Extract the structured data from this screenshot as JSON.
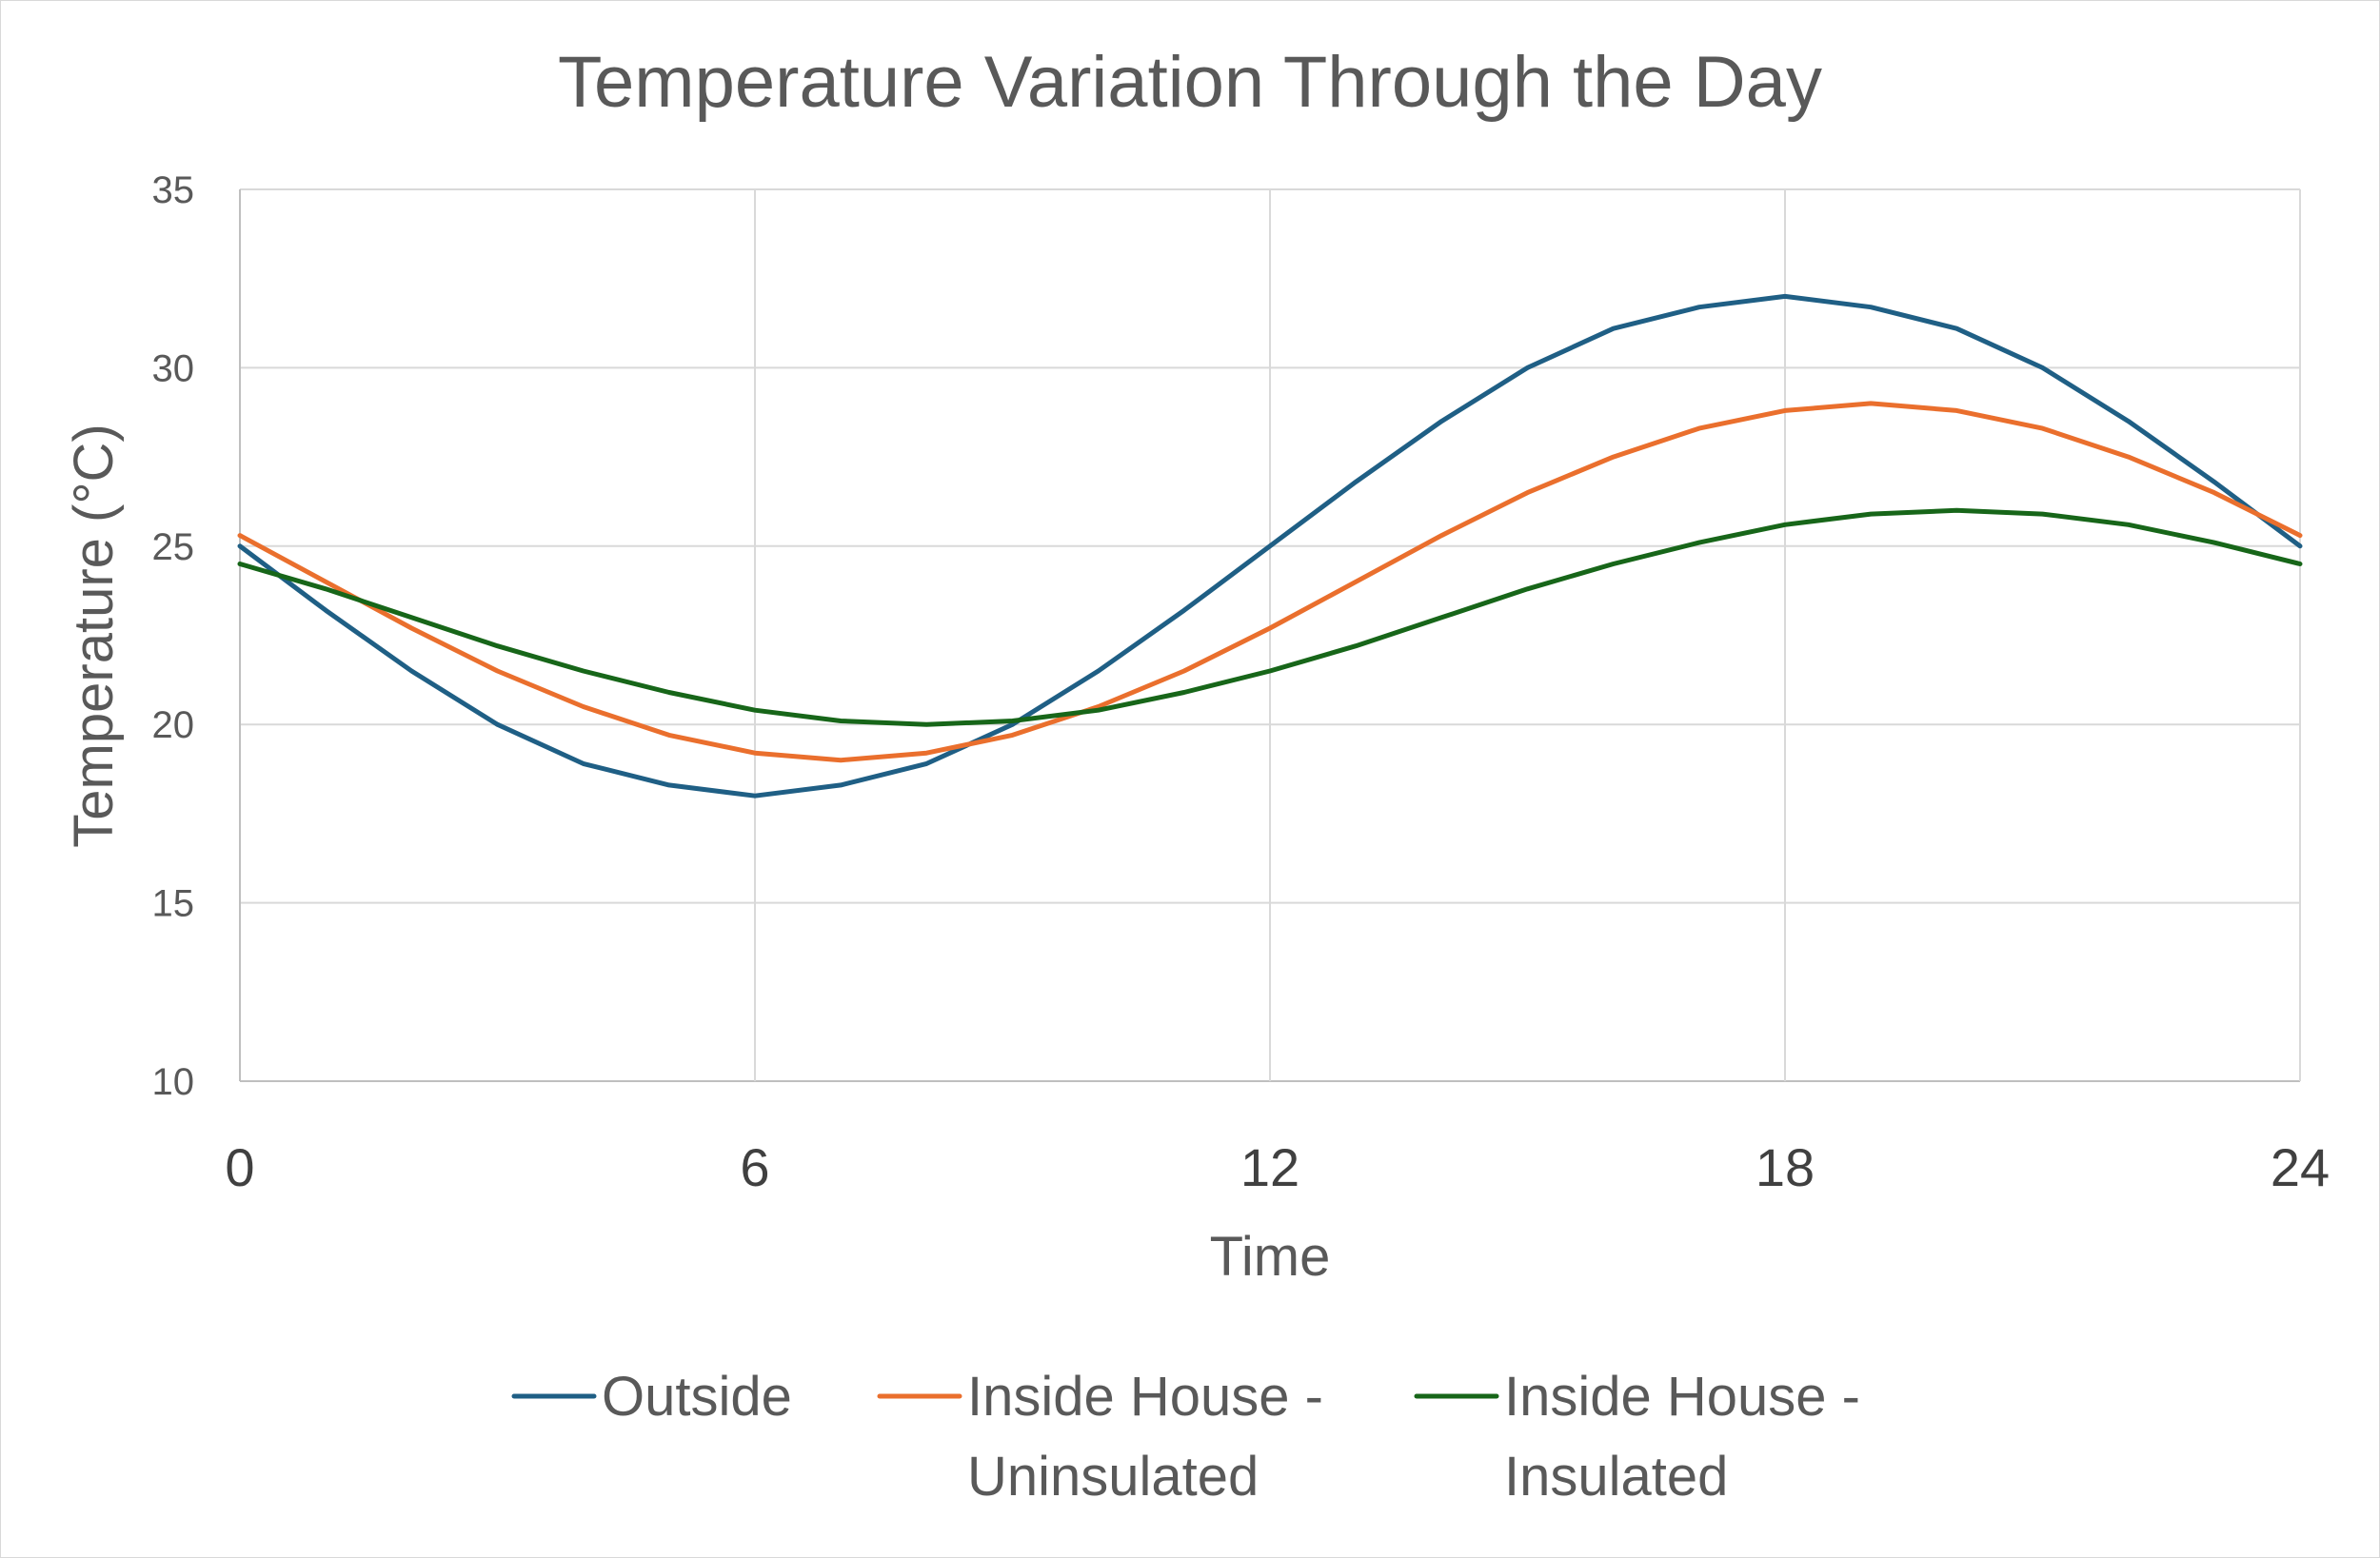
{
  "chart_data": {
    "type": "line",
    "title": "Temperature Variation Through the Day",
    "xlabel": "Time",
    "ylabel": "Temperature  (°C)",
    "xlim": [
      0,
      24
    ],
    "ylim": [
      10,
      35
    ],
    "xticks": [
      0,
      6,
      12,
      18,
      24
    ],
    "yticks": [
      10,
      15,
      20,
      25,
      30,
      35
    ],
    "grid": true,
    "legend_position": "bottom",
    "x": [
      0,
      1,
      2,
      3,
      4,
      5,
      6,
      7,
      8,
      9,
      10,
      11,
      12,
      13,
      14,
      15,
      16,
      17,
      18,
      19,
      20,
      21,
      22,
      23,
      24
    ],
    "series": [
      {
        "name": "Outside",
        "color": "#1f5f85",
        "values": [
          25.0,
          23.2,
          21.5,
          20.0,
          18.9,
          18.3,
          18.0,
          18.3,
          18.9,
          20.0,
          21.5,
          23.2,
          25.0,
          26.8,
          28.5,
          30.0,
          31.1,
          31.7,
          32.0,
          31.7,
          31.1,
          30.0,
          28.5,
          26.8,
          25.0
        ]
      },
      {
        "name": "Inside House - Uninsulated",
        "legend_lines": [
          "Inside House -",
          "Uninsulated"
        ],
        "color": "#ea6f2d",
        "values": [
          25.3,
          24.0,
          22.7,
          21.5,
          20.5,
          19.7,
          19.2,
          19.0,
          19.2,
          19.7,
          20.5,
          21.5,
          22.7,
          24.0,
          25.3,
          26.5,
          27.5,
          28.3,
          28.8,
          29.0,
          28.8,
          28.3,
          27.5,
          26.5,
          25.3
        ]
      },
      {
        "name": "Inside House - Insulated",
        "legend_lines": [
          "Inside House -",
          "Insulated"
        ],
        "color": "#176619",
        "values": [
          24.5,
          23.8,
          23.0,
          22.2,
          21.5,
          20.9,
          20.4,
          20.1,
          20.0,
          20.1,
          20.4,
          20.9,
          21.5,
          22.2,
          23.0,
          23.8,
          24.5,
          25.1,
          25.6,
          25.9,
          26.0,
          25.9,
          25.6,
          25.1,
          24.5
        ]
      }
    ]
  }
}
